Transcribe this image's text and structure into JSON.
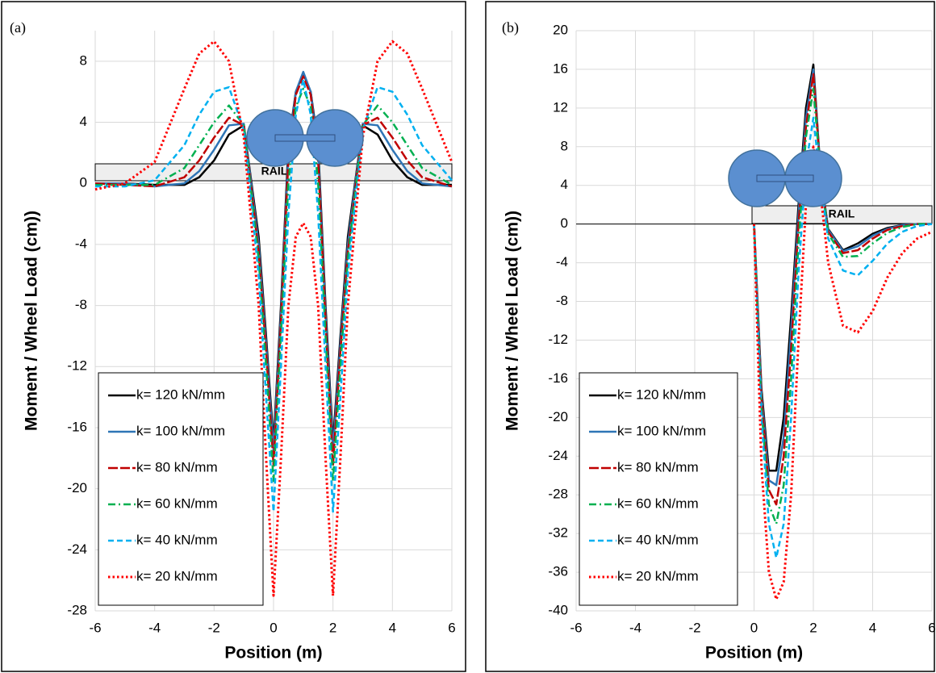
{
  "chart_data": [
    {
      "type": "line",
      "panel_label": "(a)",
      "rail_label": "RAIL",
      "x_label": "Position (m)",
      "y_label": "Moment / Wheel Load (cm))",
      "xlim": [
        -6,
        6
      ],
      "ylim": [
        -28,
        10
      ],
      "xticks": [
        -6,
        -4,
        -2,
        0,
        2,
        4,
        6
      ],
      "yticks": [
        -28,
        -24,
        -20,
        -16,
        -12,
        -8,
        -4,
        0,
        4,
        8
      ],
      "grid": true,
      "legend": "lower left",
      "zero_line": false,
      "x": [
        -6,
        -5,
        -4,
        -3,
        -2.5,
        -2,
        -1.5,
        -1,
        -0.5,
        -0.25,
        0,
        0.25,
        0.5,
        0.75,
        1,
        1.25,
        1.5,
        1.75,
        2,
        2.25,
        2.5,
        3,
        3.5,
        4,
        4.5,
        5,
        6
      ],
      "series": [
        {
          "name": "k= 120 kN/mm",
          "color": "#000000",
          "style": "solid",
          "values": [
            0,
            0,
            -0.1,
            -0.1,
            0.4,
            1.5,
            3.2,
            3.8,
            -3.5,
            -10,
            -17,
            -8,
            2.5,
            6,
            7.2,
            6,
            2.5,
            -8,
            -17,
            -10,
            -3.5,
            3.8,
            3.2,
            1.5,
            0.4,
            -0.1,
            -0.1
          ]
        },
        {
          "name": "k= 100 kN/mm",
          "color": "#2e75b6",
          "style": "solid",
          "values": [
            0,
            0,
            -0.2,
            0,
            0.8,
            2.2,
            3.8,
            3.9,
            -4,
            -10.5,
            -17.5,
            -8.5,
            2,
            6,
            7.3,
            6,
            2,
            -8.5,
            -17.5,
            -10.5,
            -4,
            3.9,
            3.8,
            2.2,
            0.8,
            0,
            -0.2
          ]
        },
        {
          "name": "k= 80 kN/mm",
          "color": "#c00000",
          "style": "longdash",
          "values": [
            0,
            -0.1,
            -0.2,
            0.4,
            1.5,
            3,
            4.3,
            3.8,
            -4.5,
            -11,
            -18.5,
            -9,
            1.5,
            5.8,
            7,
            5.8,
            1.5,
            -9,
            -18.5,
            -11,
            -4.5,
            3.8,
            4.3,
            3,
            1.5,
            0.4,
            -0.2
          ]
        },
        {
          "name": "k= 60 kN/mm",
          "color": "#00b050",
          "style": "dashdot",
          "values": [
            -0.1,
            -0.1,
            -0.1,
            1,
            2.5,
            4,
            5.1,
            3.8,
            -5,
            -12,
            -19.5,
            -10,
            0,
            5,
            6.2,
            5,
            0,
            -10,
            -19.5,
            -12,
            -5,
            3.8,
            5.1,
            4,
            2.5,
            1,
            -0.1
          ]
        },
        {
          "name": "k= 40 kN/mm",
          "color": "#00b0f0",
          "style": "dash",
          "values": [
            -0.2,
            -0.2,
            0.2,
            2.5,
            4.5,
            6,
            6.3,
            3.5,
            -6,
            -14,
            -21.5,
            -12,
            -2,
            4.5,
            6.8,
            4.5,
            -2,
            -12,
            -21.5,
            -14,
            -6,
            3.5,
            6.3,
            6,
            4.5,
            2.5,
            0.2
          ]
        },
        {
          "name": "k= 20 kN/mm",
          "color": "#ff0000",
          "style": "dot",
          "values": [
            -0.4,
            0,
            1.4,
            6.2,
            8.5,
            9.3,
            8,
            3,
            -8,
            -18,
            -27,
            -18,
            -8,
            -3.5,
            -2.6,
            -3.5,
            -8,
            -18,
            -27,
            -18,
            -8,
            3,
            8,
            9.3,
            8.5,
            6.2,
            1.4
          ]
        }
      ]
    },
    {
      "type": "line",
      "panel_label": "(b)",
      "rail_label": "RAIL",
      "x_label": "Position (m)",
      "y_label": "Moment / Wheel Load (cm))",
      "xlim": [
        -6,
        6
      ],
      "ylim": [
        -40,
        20
      ],
      "xticks": [
        -6,
        -4,
        -2,
        0,
        2,
        4,
        6
      ],
      "yticks": [
        -40,
        -36,
        -32,
        -28,
        -24,
        -20,
        -16,
        -12,
        -8,
        -4,
        0,
        4,
        8,
        12,
        16,
        20
      ],
      "grid": true,
      "legend": "lower left",
      "zero_line": true,
      "x": [
        0,
        0.25,
        0.5,
        0.75,
        1,
        1.25,
        1.5,
        1.75,
        2,
        2.25,
        2.5,
        3,
        3.5,
        4,
        4.5,
        5,
        5.5,
        6
      ],
      "series": [
        {
          "name": "k= 120 kN/mm",
          "color": "#000000",
          "style": "solid",
          "values": [
            0,
            -17,
            -25.5,
            -25.5,
            -20,
            -9.5,
            2,
            12,
            16.5,
            5,
            -0.5,
            -2.7,
            -2,
            -1,
            -0.4,
            -0.1,
            0,
            0
          ]
        },
        {
          "name": "k= 100 kN/mm",
          "color": "#2e75b6",
          "style": "solid",
          "values": [
            0,
            -17.5,
            -26.5,
            -27,
            -22,
            -11,
            1,
            11,
            16,
            5,
            -0.6,
            -2.8,
            -2.3,
            -1.2,
            -0.5,
            -0.1,
            0,
            0
          ]
        },
        {
          "name": "k= 80 kN/mm",
          "color": "#c00000",
          "style": "longdash",
          "values": [
            0,
            -18,
            -27.5,
            -29,
            -24,
            -13,
            0,
            10,
            15.5,
            5,
            -0.8,
            -3,
            -2.7,
            -1.5,
            -0.6,
            -0.2,
            0,
            0
          ]
        },
        {
          "name": "k= 60 kN/mm",
          "color": "#00b050",
          "style": "dashdot",
          "values": [
            0,
            -19,
            -29,
            -31,
            -27,
            -16,
            -2,
            9,
            14,
            5,
            -1,
            -3.4,
            -3.3,
            -2,
            -0.9,
            -0.3,
            0,
            0
          ]
        },
        {
          "name": "k= 40 kN/mm",
          "color": "#00b0f0",
          "style": "dash",
          "values": [
            0,
            -20,
            -31,
            -34.5,
            -31,
            -20,
            -5,
            6,
            11,
            4,
            -1.5,
            -4.8,
            -5.3,
            -3.8,
            -2,
            -0.8,
            -0.2,
            0
          ]
        },
        {
          "name": "k= 20 kN/mm",
          "color": "#ff0000",
          "style": "dot",
          "values": [
            0,
            -25,
            -36,
            -38.8,
            -37,
            -28,
            -12,
            2,
            8,
            3,
            -4,
            -10.5,
            -11.2,
            -9,
            -5.5,
            -3,
            -1.5,
            -0.8
          ]
        }
      ]
    }
  ]
}
